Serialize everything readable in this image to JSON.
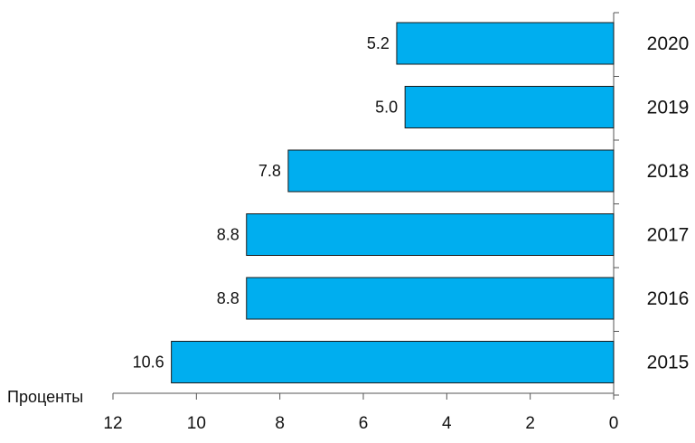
{
  "chart_data": {
    "type": "bar",
    "orientation": "horizontal",
    "x_axis_reversed": true,
    "categories": [
      "2020",
      "2019",
      "2018",
      "2017",
      "2016",
      "2015"
    ],
    "values": [
      5.2,
      5.0,
      7.8,
      8.8,
      8.8,
      10.6
    ],
    "value_labels": [
      "5.2",
      "5.0",
      "7.8",
      "8.8",
      "8.8",
      "10.6"
    ],
    "xlabel": "Проценты",
    "xlim": [
      0,
      12
    ],
    "xticks": [
      12,
      10,
      8,
      6,
      4,
      2,
      0
    ],
    "grid": false,
    "colors": {
      "bar": "#00AEEF",
      "bar_edge": "#1a1a1a",
      "axis": "#555555"
    }
  }
}
